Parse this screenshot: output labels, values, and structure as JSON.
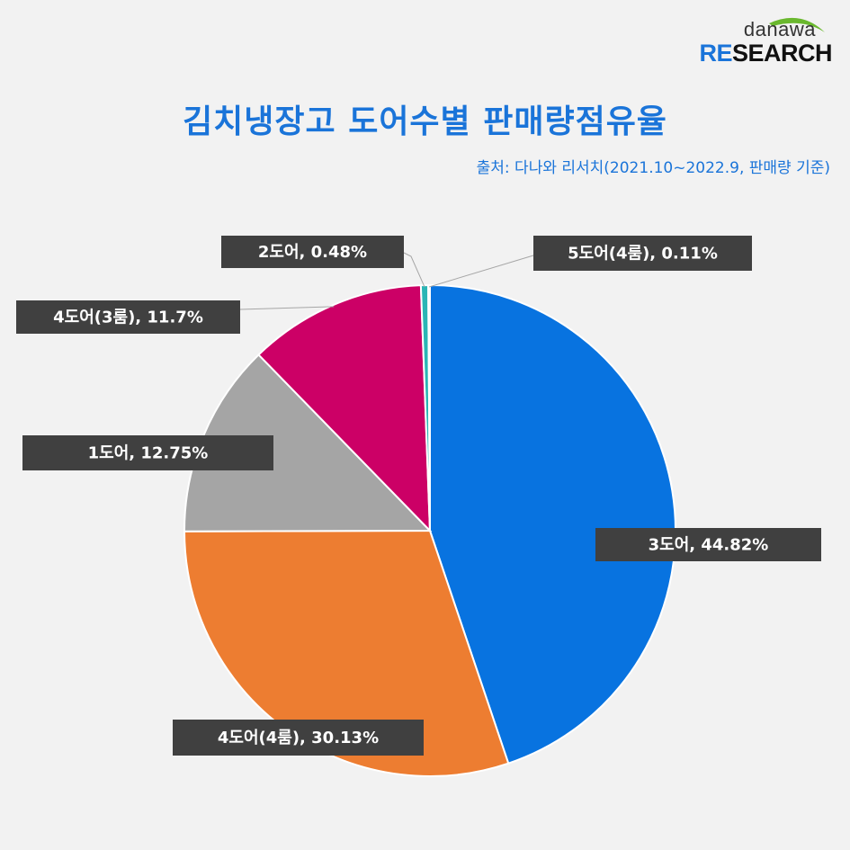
{
  "logo": {
    "top": "danawa",
    "bottom_accent": "RE",
    "bottom_rest": "SEARCH"
  },
  "title": "김치냉장고 도어수별 판매량점유율",
  "source": "출처: 다나와 리서치(2021.10~2022.9,  판매량 기준)",
  "chart_data": {
    "type": "pie",
    "categories": [
      "3도어",
      "4도어(4룸)",
      "1도어",
      "4도어(3룸)",
      "2도어",
      "5도어(4룸)"
    ],
    "values": [
      44.82,
      30.13,
      12.75,
      11.7,
      0.48,
      0.11
    ],
    "labels": [
      "3도어, 44.82%",
      "4도어(4룸), 30.13%",
      "1도어, 12.75%",
      "4도어(3룸), 11.7%",
      "2도어, 0.48%",
      "5도어(4룸), 0.11%"
    ],
    "colors": [
      "#0873e0",
      "#ed7d31",
      "#a5a5a5",
      "#cc0066",
      "#2ab5b5",
      "#4472c4"
    ],
    "start": "12 o'clock, clockwise"
  }
}
